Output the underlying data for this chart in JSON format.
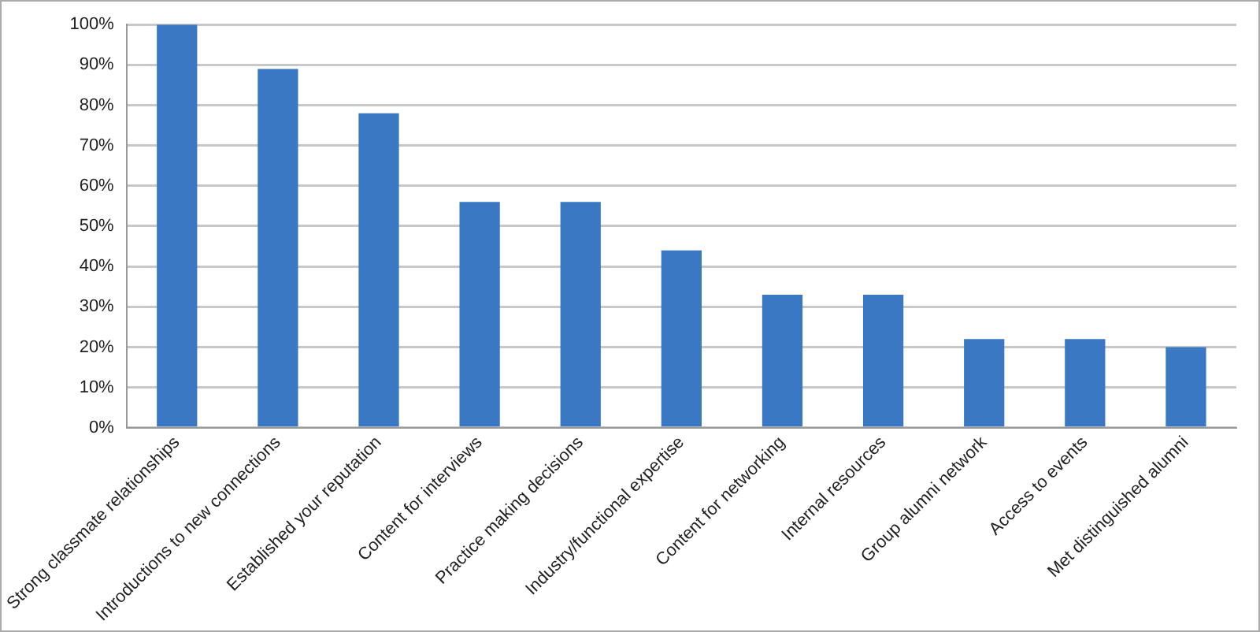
{
  "chart_data": {
    "type": "bar",
    "categories": [
      "Strong classmate relationships",
      "Introductions to new connections",
      "Established your reputation",
      "Content for interviews",
      "Practice making decisions",
      "Industry/functional expertise",
      "Content for networking",
      "Internal resources",
      "Group alumni network",
      "Access to events",
      "Met distinguished alumni"
    ],
    "values": [
      100,
      89,
      78,
      56,
      56,
      44,
      33,
      33,
      22,
      22,
      20
    ],
    "color": "#3a78c3",
    "ylim": [
      0,
      100
    ],
    "yticks": [
      {
        "value": 0,
        "label": "0%"
      },
      {
        "value": 10,
        "label": "10%"
      },
      {
        "value": 20,
        "label": "20%"
      },
      {
        "value": 30,
        "label": "30%"
      },
      {
        "value": 40,
        "label": "40%"
      },
      {
        "value": 50,
        "label": "50%"
      },
      {
        "value": 60,
        "label": "60%"
      },
      {
        "value": 70,
        "label": "70%"
      },
      {
        "value": 80,
        "label": "80%"
      },
      {
        "value": 90,
        "label": "90%"
      },
      {
        "value": 100,
        "label": "100%"
      }
    ],
    "grid": "y",
    "legend": false
  }
}
